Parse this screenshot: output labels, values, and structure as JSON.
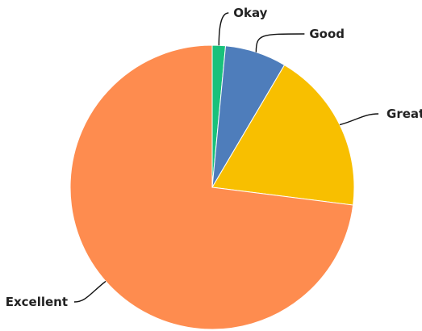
{
  "chart_data": {
    "type": "pie",
    "title": "",
    "categories": [
      "Okay",
      "Good",
      "Great",
      "Excellent"
    ],
    "values": [
      1.5,
      7.0,
      18.5,
      73.0
    ],
    "colors": [
      "#19c17b",
      "#4e7dbb",
      "#f8bf00",
      "#fe8c4f"
    ],
    "start_angle_deg": 0,
    "direction": "clockwise",
    "legend": "none"
  }
}
